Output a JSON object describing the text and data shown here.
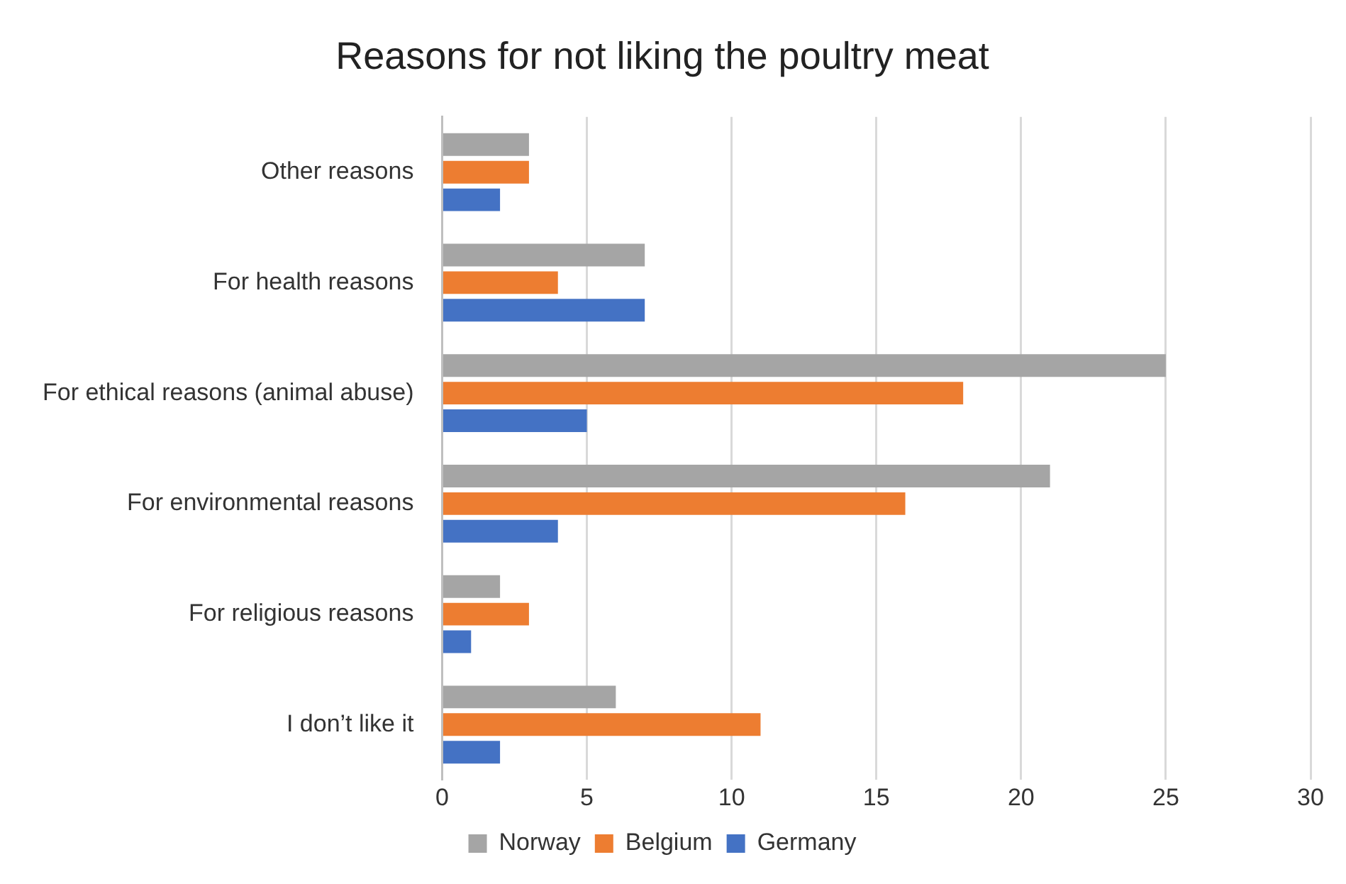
{
  "chart_data": {
    "type": "bar",
    "orientation": "horizontal",
    "title": "Reasons for not liking the poultry meat",
    "categories": [
      "Other reasons",
      "For health reasons",
      "For ethical reasons (animal abuse)",
      "For environmental reasons",
      "For religious reasons",
      "I don’t like it"
    ],
    "series": [
      {
        "name": "Norway",
        "color": "#a5a5a5",
        "values": [
          3,
          7,
          25,
          21,
          2,
          6
        ]
      },
      {
        "name": "Belgium",
        "color": "#ed7d31",
        "values": [
          3,
          4,
          18,
          16,
          3,
          11
        ]
      },
      {
        "name": "Germany",
        "color": "#4472c4",
        "values": [
          2,
          7,
          5,
          4,
          1,
          2
        ]
      }
    ],
    "xlim": [
      0,
      30
    ],
    "xticks": [
      0,
      5,
      10,
      15,
      20,
      25,
      30
    ],
    "grid": "x",
    "legend": "bottom"
  }
}
